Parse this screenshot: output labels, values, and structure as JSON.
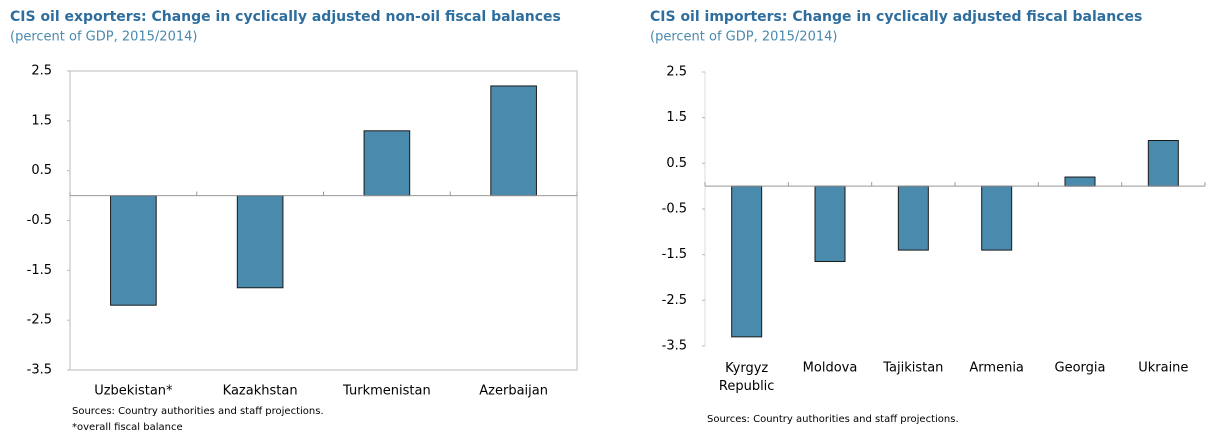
{
  "chart_data": [
    {
      "type": "bar",
      "title": "CIS oil exporters: Change in cyclically adjusted non-oil fiscal balances",
      "subtitle": "(percent of GDP, 2015/2014)",
      "categories": [
        "Uzbekistan*",
        "Kazakhstan",
        "Turkmenistan",
        "Azerbaijan"
      ],
      "values": [
        -2.2,
        -1.85,
        1.3,
        2.2
      ],
      "color": "#4a8aad",
      "ylim": [
        -3.5,
        2.5
      ],
      "yticks": [
        -3.5,
        -2.5,
        -1.5,
        -0.5,
        0.5,
        1.5,
        2.5
      ],
      "frame": true,
      "notes": [
        "Sources: Country authorities and staff projections.",
        "*overall fiscal balance"
      ]
    },
    {
      "type": "bar",
      "title": "CIS oil importers: Change in cyclically adjusted fiscal balances",
      "subtitle": "(percent of GDP, 2015/2014)",
      "categories": [
        "Kyrgyz Republic",
        "Moldova",
        "Tajikistan",
        "Armenia",
        "Georgia",
        "Ukraine"
      ],
      "values": [
        -3.3,
        -1.65,
        -1.4,
        -1.4,
        0.2,
        1.0
      ],
      "color": "#4a8aad",
      "ylim": [
        -3.5,
        2.5
      ],
      "yticks": [
        -3.5,
        -2.5,
        -1.5,
        -0.5,
        0.5,
        1.5,
        2.5
      ],
      "frame": false,
      "notes": [
        "Sources: Country authorities and staff projections."
      ]
    }
  ]
}
